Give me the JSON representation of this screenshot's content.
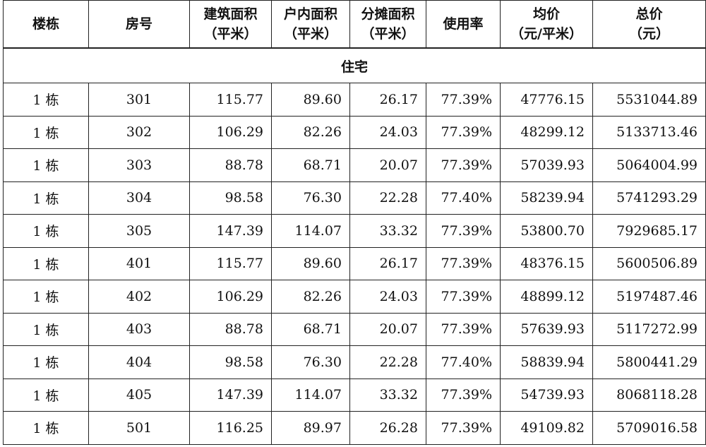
{
  "table": {
    "headers": [
      {
        "line1": "楼栋",
        "line2": ""
      },
      {
        "line1": "房号",
        "line2": ""
      },
      {
        "line1": "建筑面积",
        "line2": "（平米）"
      },
      {
        "line1": "户内面积",
        "line2": "（平米）"
      },
      {
        "line1": "分摊面积",
        "line2": "（平米）"
      },
      {
        "line1": "使用率",
        "line2": ""
      },
      {
        "line1": "均价",
        "line2": "（元/平米）"
      },
      {
        "line1": "总价",
        "line2": "（元）"
      }
    ],
    "section_label": "住宅",
    "rows": [
      [
        "1 栋",
        "301",
        "115.77",
        "89.60",
        "26.17",
        "77.39%",
        "47776.15",
        "5531044.89"
      ],
      [
        "1 栋",
        "302",
        "106.29",
        "82.26",
        "24.03",
        "77.39%",
        "48299.12",
        "5133713.46"
      ],
      [
        "1 栋",
        "303",
        "88.78",
        "68.71",
        "20.07",
        "77.39%",
        "57039.93",
        "5064004.99"
      ],
      [
        "1 栋",
        "304",
        "98.58",
        "76.30",
        "22.28",
        "77.40%",
        "58239.94",
        "5741293.29"
      ],
      [
        "1 栋",
        "305",
        "147.39",
        "114.07",
        "33.32",
        "77.39%",
        "53800.70",
        "7929685.17"
      ],
      [
        "1 栋",
        "401",
        "115.77",
        "89.60",
        "26.17",
        "77.39%",
        "48376.15",
        "5600506.89"
      ],
      [
        "1 栋",
        "402",
        "106.29",
        "82.26",
        "24.03",
        "77.39%",
        "48899.12",
        "5197487.46"
      ],
      [
        "1 栋",
        "403",
        "88.78",
        "68.71",
        "20.07",
        "77.39%",
        "57639.93",
        "5117272.99"
      ],
      [
        "1 栋",
        "404",
        "98.58",
        "76.30",
        "22.28",
        "77.40%",
        "58839.94",
        "5800441.29"
      ],
      [
        "1 栋",
        "405",
        "147.39",
        "114.07",
        "33.32",
        "77.39%",
        "54739.93",
        "8068118.28"
      ],
      [
        "1 栋",
        "501",
        "116.25",
        "89.97",
        "26.28",
        "77.39%",
        "49109.82",
        "5709016.58"
      ]
    ]
  }
}
